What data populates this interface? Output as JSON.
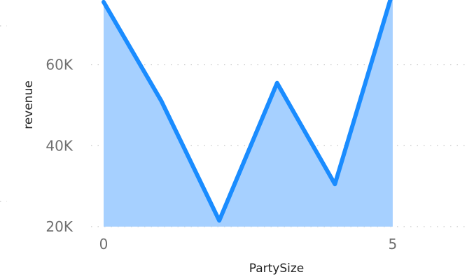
{
  "chart_data": {
    "type": "area",
    "xlabel": "PartySize",
    "ylabel": "revenue",
    "x": [
      0,
      1,
      2,
      3,
      4,
      5
    ],
    "series": [
      {
        "values": [
          75500,
          51000,
          21500,
          55500,
          30500,
          78000
        ]
      }
    ],
    "x_ticks": [
      0,
      5
    ],
    "x_tick_labels": [
      "0",
      "5"
    ],
    "y_ticks": [
      20000,
      40000,
      60000
    ],
    "y_tick_labels": [
      "20K",
      "40K",
      "60K"
    ],
    "xlim": [
      0,
      6.2
    ],
    "ylim": [
      20000,
      76000
    ],
    "grid": true,
    "colors": {
      "line": "#1a8cff",
      "fill": "#a6d0ff",
      "grid": "#c8c8c8"
    }
  }
}
